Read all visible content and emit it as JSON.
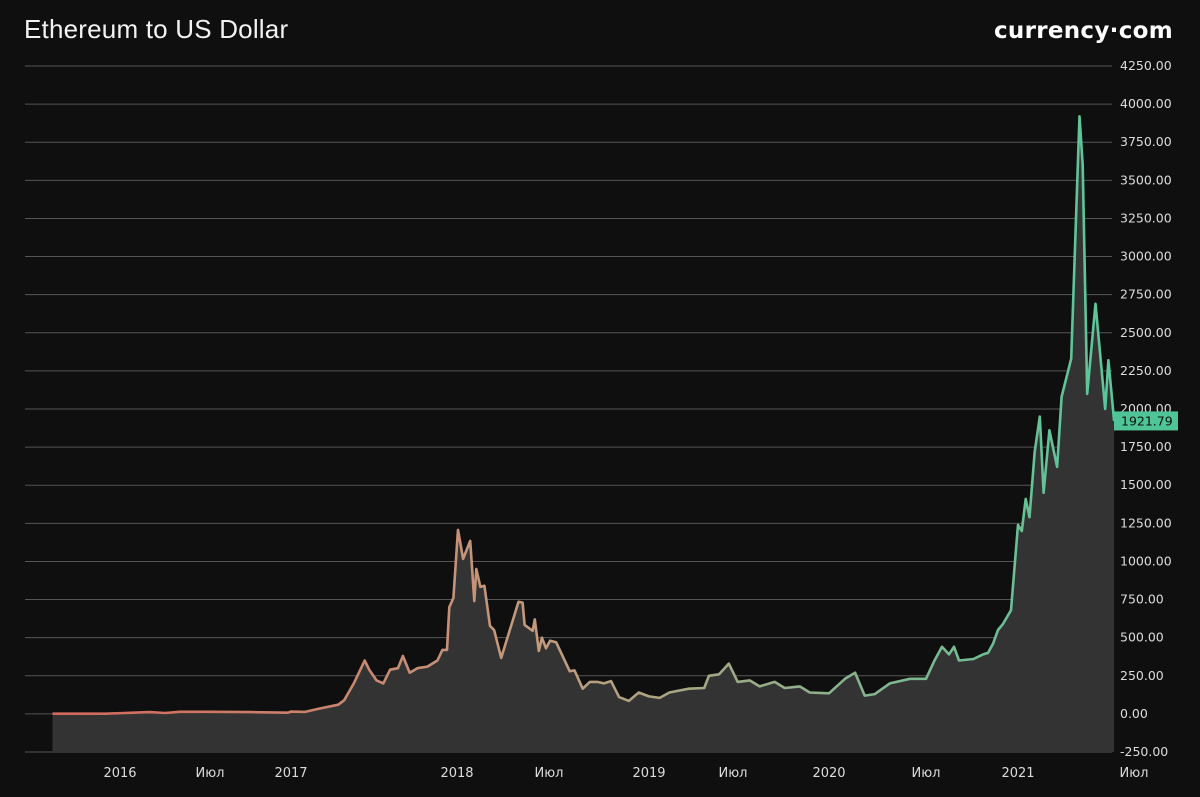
{
  "title": "Ethereum to US Dollar",
  "logo": "currency·com",
  "chart_data": {
    "type": "area",
    "title": "Ethereum to US Dollar",
    "xlabel": "",
    "ylabel": "",
    "ylim": [
      -250,
      4250
    ],
    "grid": true,
    "y_ticks": [
      "4250.00",
      "4000.00",
      "3750.00",
      "3500.00",
      "3250.00",
      "3000.00",
      "2750.00",
      "2500.00",
      "2250.00",
      "2000.00",
      "1750.00",
      "1500.00",
      "1250.00",
      "1000.00",
      "750.00",
      "500.00",
      "250.00",
      "0.00",
      "-250.00"
    ],
    "x_ticks": [
      {
        "date": "2016-01-01",
        "label": "2016"
      },
      {
        "date": "2016-07-01",
        "label": "Июл"
      },
      {
        "date": "2017-01-01",
        "label": "2017"
      },
      {
        "date": "2018-01-01",
        "label": "2018"
      },
      {
        "date": "2018-07-01",
        "label": "Июл"
      },
      {
        "date": "2019-01-01",
        "label": "2019"
      },
      {
        "date": "2019-07-01",
        "label": "Июл"
      },
      {
        "date": "2020-01-01",
        "label": "2020"
      },
      {
        "date": "2020-07-01",
        "label": "Июл"
      },
      {
        "date": "2021-01-01",
        "label": "2021"
      },
      {
        "date": "2021-07-01",
        "label": "Июл"
      }
    ],
    "last_value": "1921.79",
    "colors": {
      "line_start": "#d4675c",
      "line_mid": "#c39a7c",
      "line_end": "#58c79b",
      "area": "#333333",
      "grid": "#555555",
      "label_bg": "#4fc597"
    },
    "points": [
      [
        "2015-08-10",
        1
      ],
      [
        "2015-12-01",
        1
      ],
      [
        "2016-03-01",
        12
      ],
      [
        "2016-04-01",
        6
      ],
      [
        "2016-05-01",
        14
      ],
      [
        "2016-07-01",
        14
      ],
      [
        "2016-10-01",
        12
      ],
      [
        "2016-12-25",
        8
      ],
      [
        "2017-01-01",
        15
      ],
      [
        "2017-02-01",
        13
      ],
      [
        "2017-03-04",
        35
      ],
      [
        "2017-04-15",
        60
      ],
      [
        "2017-04-28",
        90
      ],
      [
        "2017-05-19",
        200
      ],
      [
        "2017-06-12",
        350
      ],
      [
        "2017-06-22",
        290
      ],
      [
        "2017-07-08",
        220
      ],
      [
        "2017-07-23",
        200
      ],
      [
        "2017-08-07",
        290
      ],
      [
        "2017-08-24",
        300
      ],
      [
        "2017-09-04",
        380
      ],
      [
        "2017-09-19",
        270
      ],
      [
        "2017-10-06",
        300
      ],
      [
        "2017-10-28",
        310
      ],
      [
        "2017-11-19",
        350
      ],
      [
        "2017-11-30",
        420
      ],
      [
        "2017-12-10",
        420
      ],
      [
        "2017-12-15",
        700
      ],
      [
        "2017-12-24",
        760
      ],
      [
        "2018-01-03",
        1207
      ],
      [
        "2018-01-13",
        1017
      ],
      [
        "2018-01-27",
        1135
      ],
      [
        "2018-02-04",
        740
      ],
      [
        "2018-02-08",
        950
      ],
      [
        "2018-02-16",
        833
      ],
      [
        "2018-02-24",
        840
      ],
      [
        "2018-03-07",
        577
      ],
      [
        "2018-03-15",
        550
      ],
      [
        "2018-03-29",
        367
      ],
      [
        "2018-05-02",
        735
      ],
      [
        "2018-05-10",
        730
      ],
      [
        "2018-05-14",
        584
      ],
      [
        "2018-05-30",
        545
      ],
      [
        "2018-06-03",
        620
      ],
      [
        "2018-06-11",
        413
      ],
      [
        "2018-06-17",
        500
      ],
      [
        "2018-06-25",
        430
      ],
      [
        "2018-07-03",
        480
      ],
      [
        "2018-07-14",
        470
      ],
      [
        "2018-08-08",
        280
      ],
      [
        "2018-08-17",
        285
      ],
      [
        "2018-09-01",
        165
      ],
      [
        "2018-09-14",
        210
      ],
      [
        "2018-09-28",
        210
      ],
      [
        "2018-10-10",
        200
      ],
      [
        "2018-10-23",
        215
      ],
      [
        "2018-11-07",
        110
      ],
      [
        "2018-11-25",
        85
      ],
      [
        "2018-12-13",
        140
      ],
      [
        "2019-01-01",
        115
      ],
      [
        "2019-01-24",
        105
      ],
      [
        "2019-02-14",
        140
      ],
      [
        "2019-03-28",
        165
      ],
      [
        "2019-04-30",
        170
      ],
      [
        "2019-05-10",
        250
      ],
      [
        "2019-06-01",
        260
      ],
      [
        "2019-06-22",
        330
      ],
      [
        "2019-07-10",
        210
      ],
      [
        "2019-08-02",
        220
      ],
      [
        "2019-08-21",
        180
      ],
      [
        "2019-09-19",
        210
      ],
      [
        "2019-10-08",
        170
      ],
      [
        "2019-11-06",
        180
      ],
      [
        "2019-11-25",
        140
      ],
      [
        "2020-01-01",
        135
      ],
      [
        "2020-01-31",
        230
      ],
      [
        "2020-02-19",
        270
      ],
      [
        "2020-03-08",
        120
      ],
      [
        "2020-03-27",
        130
      ],
      [
        "2020-04-24",
        200
      ],
      [
        "2020-06-01",
        230
      ],
      [
        "2020-07-01",
        230
      ],
      [
        "2020-07-18",
        350
      ],
      [
        "2020-08-02",
        440
      ],
      [
        "2020-08-16",
        390
      ],
      [
        "2020-08-26",
        440
      ],
      [
        "2020-09-05",
        350
      ],
      [
        "2020-10-04",
        360
      ],
      [
        "2020-10-23",
        390
      ],
      [
        "2020-11-02",
        400
      ],
      [
        "2020-11-12",
        460
      ],
      [
        "2020-11-22",
        550
      ],
      [
        "2020-12-02",
        590
      ],
      [
        "2020-12-18",
        680
      ],
      [
        "2021-01-01",
        1240
      ],
      [
        "2021-01-07",
        1200
      ],
      [
        "2021-01-13",
        1410
      ],
      [
        "2021-01-19",
        1290
      ],
      [
        "2021-01-27",
        1720
      ],
      [
        "2021-02-04",
        1950
      ],
      [
        "2021-02-10",
        1450
      ],
      [
        "2021-02-19",
        1860
      ],
      [
        "2021-03-03",
        1620
      ],
      [
        "2021-03-10",
        2080
      ],
      [
        "2021-03-25",
        2330
      ],
      [
        "2021-04-07",
        3920
      ],
      [
        "2021-04-12",
        3600
      ],
      [
        "2021-04-19",
        2100
      ],
      [
        "2021-05-02",
        2690
      ],
      [
        "2021-05-17",
        2000
      ],
      [
        "2021-05-22",
        2320
      ],
      [
        "2021-05-31",
        1921.79
      ]
    ]
  }
}
